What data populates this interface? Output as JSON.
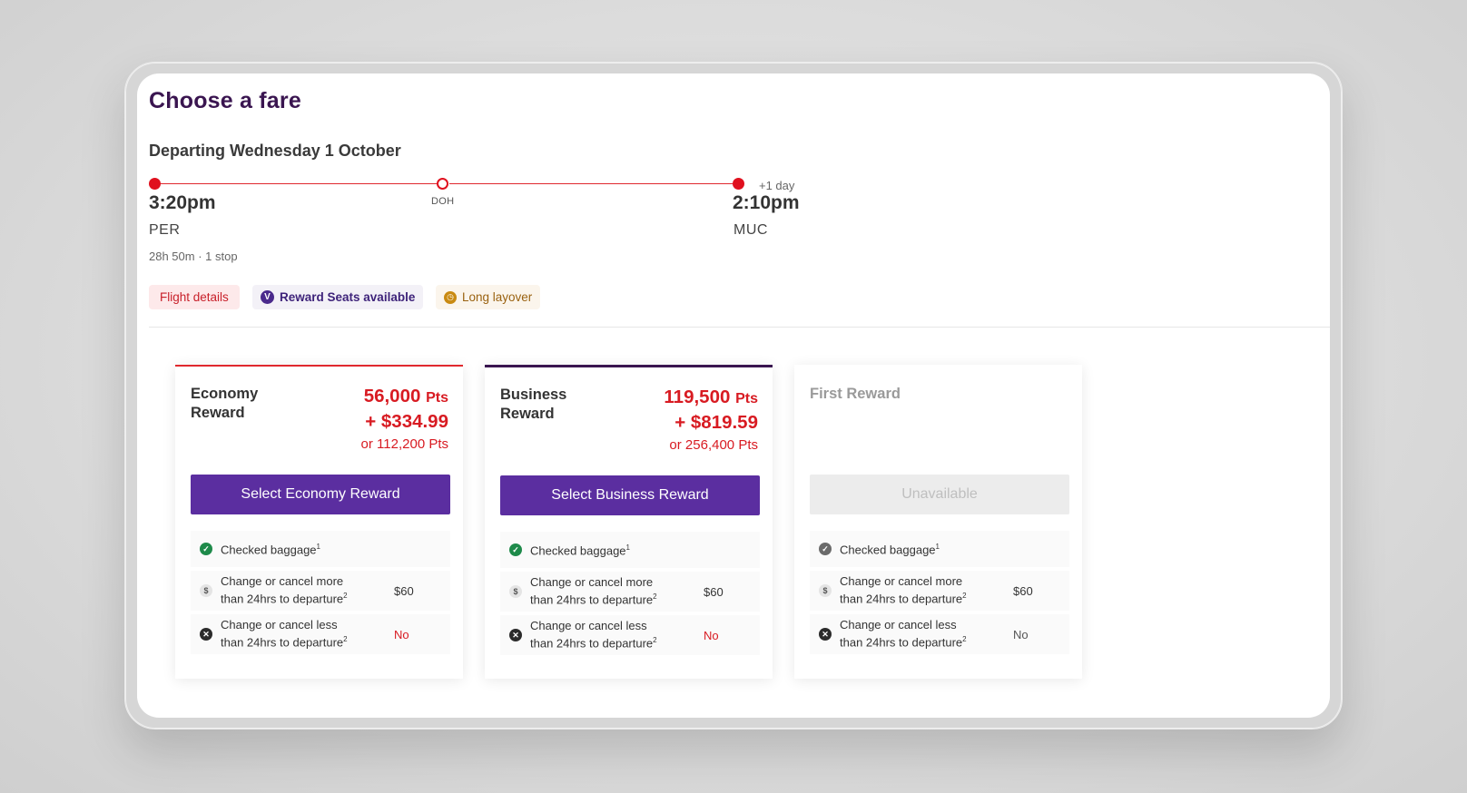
{
  "title": "Choose a fare",
  "departing": "Departing Wednesday 1 October",
  "route": {
    "depart_time": "3:20pm",
    "depart_code": "PER",
    "stop_code": "DOH",
    "arrive_time": "2:10pm",
    "arrive_code": "MUC",
    "plus_day": "+1 day",
    "duration": "28h 50m · 1 stop"
  },
  "chips": {
    "flight_details": "Flight details",
    "reward_icon": "V",
    "reward_seats": "Reward Seats available",
    "long_layover": "Long layover"
  },
  "fares": {
    "economy": {
      "name": "Economy Reward",
      "points": "56,000",
      "pts_unit": "Pts",
      "cash": "+ $334.99",
      "alt": "or 112,200 Pts",
      "button": "Select Economy Reward"
    },
    "business": {
      "name": "Business Reward",
      "points": "119,500",
      "pts_unit": "Pts",
      "cash": "+ $819.59",
      "alt": "or 256,400 Pts",
      "button": "Select Business Reward"
    },
    "first": {
      "name": "First Reward",
      "button": "Unavailable"
    }
  },
  "features": {
    "baggage": "Checked baggage",
    "change_more_line1": "Change or cancel more",
    "change_more_line2": "than 24hrs to departure",
    "change_more_value": "$60",
    "change_less_line1": "Change or cancel less",
    "change_less_line2": "than 24hrs to departure",
    "change_less_value": "No",
    "sup1": "1",
    "sup2": "2"
  },
  "icons": {
    "check": "check-circle-icon",
    "dollar": "dollar-icon",
    "cross": "x-circle-icon",
    "clock": "clock-icon"
  },
  "colors": {
    "accent_red": "#d81b22",
    "brand_purple": "#5b2ea0",
    "title_purple": "#3a1550"
  }
}
